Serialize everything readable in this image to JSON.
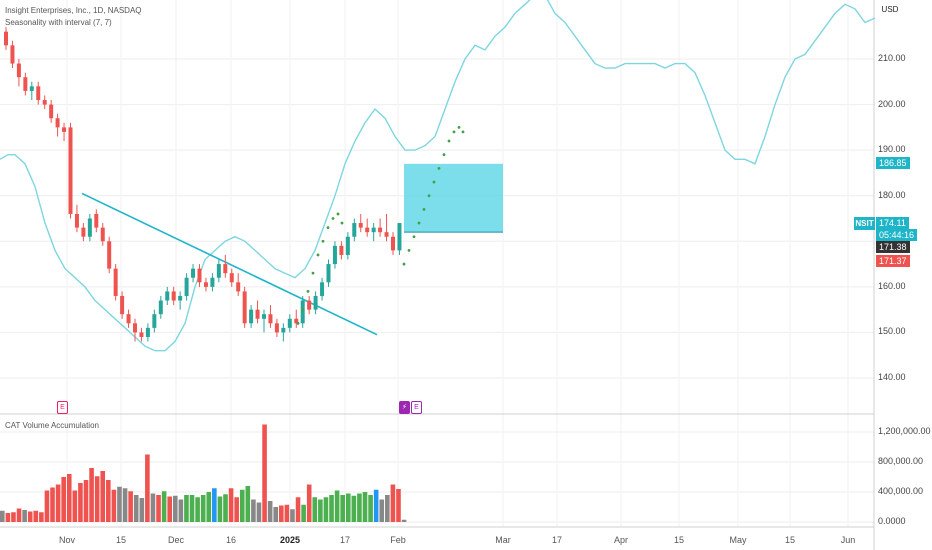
{
  "legend": {
    "symbol_line": "Insight Enterprises, Inc., 1D, NASDAQ",
    "indicator_line": "Seasonality with interval (7, 7)",
    "volume_label": "CAT Volume Accumulation"
  },
  "currency_button": "USD",
  "ticker": "NSIT",
  "price_axis_labels": [
    "210.00",
    "200.00",
    "190.00",
    "180.00",
    "160.00",
    "150.00",
    "140.00"
  ],
  "volume_axis_labels": [
    "1,200,000.00",
    "800,000.00",
    "400,000.00",
    "0.0000"
  ],
  "price_tags": {
    "target": "186.85",
    "last": "174.11",
    "countdown": "05:44:16",
    "close_a": "171.38",
    "close_b": "171.37"
  },
  "time_labels": [
    "Nov",
    "15",
    "Dec",
    "16",
    "2025",
    "17",
    "Feb",
    "Mar",
    "17",
    "Apr",
    "15",
    "May",
    "15",
    "Jun"
  ],
  "events": [
    "E",
    "⚡",
    "E"
  ],
  "colors": {
    "up": "#26a69a",
    "down": "#ef5350",
    "seasonality": "#7dd6e0",
    "trendline": "#1fb5c9",
    "target_box": "#4fd3e3",
    "forecast_dots": "#43a047",
    "vol_green": "#4caf50",
    "vol_red": "#ef5350",
    "vol_gray": "#888888",
    "vol_blue": "#2196f3"
  },
  "chart_data": {
    "type": "candlestick",
    "price_range": [
      132,
      218
    ],
    "volume_range": [
      0,
      1300000
    ],
    "candles": [
      [
        216,
        217,
        212,
        213
      ],
      [
        213,
        214,
        208,
        209
      ],
      [
        209,
        210,
        204,
        206
      ],
      [
        206,
        207,
        202,
        203
      ],
      [
        203,
        205,
        201,
        204
      ],
      [
        204,
        205,
        200,
        201
      ],
      [
        201,
        202,
        199,
        200
      ],
      [
        200,
        201,
        196,
        197
      ],
      [
        197,
        198,
        193,
        195
      ],
      [
        195,
        196,
        192,
        194
      ],
      [
        195,
        196,
        175,
        176
      ],
      [
        176,
        178,
        172,
        173
      ],
      [
        173,
        174,
        170,
        171
      ],
      [
        171,
        176,
        170,
        175
      ],
      [
        176,
        177,
        172,
        173
      ],
      [
        173,
        174,
        169,
        170
      ],
      [
        170,
        171,
        163,
        164
      ],
      [
        164,
        165,
        157,
        158
      ],
      [
        158,
        159,
        153,
        154
      ],
      [
        154,
        155,
        151,
        152
      ],
      [
        152,
        153,
        148,
        150
      ],
      [
        150,
        151,
        148,
        149
      ],
      [
        149,
        152,
        148,
        151
      ],
      [
        151,
        155,
        150,
        154
      ],
      [
        154,
        158,
        153,
        157
      ],
      [
        157,
        160,
        156,
        159
      ],
      [
        159,
        160,
        156,
        157
      ],
      [
        157,
        159,
        155,
        158
      ],
      [
        158,
        163,
        157,
        162
      ],
      [
        162,
        165,
        161,
        164
      ],
      [
        164,
        165,
        160,
        161
      ],
      [
        161,
        162,
        159,
        160
      ],
      [
        160,
        163,
        159,
        162
      ],
      [
        162,
        166,
        161,
        165
      ],
      [
        165,
        167,
        162,
        163
      ],
      [
        163,
        164,
        160,
        161
      ],
      [
        161,
        163,
        158,
        159
      ],
      [
        159,
        160,
        151,
        152
      ],
      [
        152,
        156,
        151,
        155
      ],
      [
        155,
        157,
        152,
        153
      ],
      [
        153,
        155,
        150,
        154
      ],
      [
        154,
        156,
        151,
        152
      ],
      [
        152,
        153,
        149,
        150
      ],
      [
        150,
        152,
        148,
        151
      ],
      [
        151,
        154,
        150,
        153
      ],
      [
        153,
        155,
        151,
        152
      ],
      [
        152,
        158,
        151,
        157
      ],
      [
        157,
        158,
        154,
        155
      ],
      [
        155,
        159,
        154,
        158
      ],
      [
        158,
        162,
        157,
        161
      ],
      [
        161,
        166,
        160,
        165
      ],
      [
        165,
        170,
        164,
        169
      ],
      [
        169,
        170,
        166,
        167
      ],
      [
        167,
        172,
        166,
        171
      ],
      [
        171,
        175,
        170,
        174
      ],
      [
        174,
        176,
        172,
        173
      ],
      [
        173,
        175,
        171,
        172
      ],
      [
        172,
        174,
        170,
        173
      ],
      [
        173,
        175,
        171,
        172
      ],
      [
        172,
        176,
        170,
        171
      ],
      [
        171,
        172,
        167,
        168
      ],
      [
        168,
        174,
        167,
        174
      ]
    ],
    "volume": [
      [
        150000,
        "gray"
      ],
      [
        120000,
        "red"
      ],
      [
        130000,
        "red"
      ],
      [
        180000,
        "red"
      ],
      [
        160000,
        "gray"
      ],
      [
        140000,
        "red"
      ],
      [
        150000,
        "red"
      ],
      [
        130000,
        "red"
      ],
      [
        420000,
        "red"
      ],
      [
        460000,
        "red"
      ],
      [
        500000,
        "red"
      ],
      [
        600000,
        "red"
      ],
      [
        640000,
        "red"
      ],
      [
        420000,
        "red"
      ],
      [
        520000,
        "red"
      ],
      [
        560000,
        "red"
      ],
      [
        720000,
        "red"
      ],
      [
        610000,
        "red"
      ],
      [
        680000,
        "red"
      ],
      [
        560000,
        "red"
      ],
      [
        430000,
        "red"
      ],
      [
        470000,
        "gray"
      ],
      [
        450000,
        "gray"
      ],
      [
        410000,
        "red"
      ],
      [
        360000,
        "gray"
      ],
      [
        320000,
        "gray"
      ],
      [
        900000,
        "red"
      ],
      [
        380000,
        "gray"
      ],
      [
        360000,
        "red"
      ],
      [
        410000,
        "green"
      ],
      [
        340000,
        "red"
      ],
      [
        350000,
        "gray"
      ],
      [
        300000,
        "gray"
      ],
      [
        360000,
        "green"
      ],
      [
        360000,
        "green"
      ],
      [
        330000,
        "green"
      ],
      [
        360000,
        "green"
      ],
      [
        400000,
        "green"
      ],
      [
        450000,
        "blue"
      ],
      [
        340000,
        "green"
      ],
      [
        370000,
        "green"
      ],
      [
        450000,
        "red"
      ],
      [
        330000,
        "red"
      ],
      [
        430000,
        "green"
      ],
      [
        480000,
        "green"
      ],
      [
        300000,
        "gray"
      ],
      [
        260000,
        "gray"
      ],
      [
        1300000,
        "red"
      ],
      [
        280000,
        "gray"
      ],
      [
        200000,
        "gray"
      ],
      [
        220000,
        "red"
      ],
      [
        230000,
        "red"
      ],
      [
        170000,
        "gray"
      ],
      [
        330000,
        "red"
      ],
      [
        230000,
        "green"
      ],
      [
        500000,
        "red"
      ],
      [
        330000,
        "green"
      ],
      [
        300000,
        "green"
      ],
      [
        330000,
        "green"
      ],
      [
        360000,
        "green"
      ],
      [
        420000,
        "green"
      ],
      [
        360000,
        "green"
      ],
      [
        380000,
        "green"
      ],
      [
        350000,
        "green"
      ],
      [
        380000,
        "green"
      ],
      [
        400000,
        "green"
      ],
      [
        360000,
        "green"
      ],
      [
        430000,
        "blue"
      ],
      [
        300000,
        "gray"
      ],
      [
        360000,
        "gray"
      ],
      [
        500000,
        "red"
      ],
      [
        440000,
        "red"
      ],
      [
        30000,
        "gray"
      ]
    ],
    "seasonality": [
      [
        0,
        188
      ],
      [
        8,
        189
      ],
      [
        15,
        189
      ],
      [
        25,
        187
      ],
      [
        35,
        182
      ],
      [
        45,
        174
      ],
      [
        55,
        168
      ],
      [
        65,
        164
      ],
      [
        75,
        162
      ],
      [
        85,
        160
      ],
      [
        95,
        157
      ],
      [
        105,
        155
      ],
      [
        115,
        153
      ],
      [
        125,
        151
      ],
      [
        135,
        149
      ],
      [
        145,
        147
      ],
      [
        155,
        146
      ],
      [
        165,
        146
      ],
      [
        175,
        148
      ],
      [
        185,
        152
      ],
      [
        195,
        160
      ],
      [
        205,
        166
      ],
      [
        215,
        168
      ],
      [
        225,
        170
      ],
      [
        235,
        171
      ],
      [
        245,
        170
      ],
      [
        255,
        168
      ],
      [
        265,
        166
      ],
      [
        275,
        164
      ],
      [
        285,
        163
      ],
      [
        295,
        162
      ],
      [
        305,
        164
      ],
      [
        315,
        168
      ],
      [
        325,
        174
      ],
      [
        335,
        180
      ],
      [
        345,
        187
      ],
      [
        355,
        192
      ],
      [
        365,
        196
      ],
      [
        375,
        199
      ],
      [
        385,
        197
      ],
      [
        395,
        193
      ],
      [
        405,
        190
      ],
      [
        415,
        190
      ],
      [
        425,
        191
      ],
      [
        435,
        193
      ],
      [
        445,
        199
      ],
      [
        455,
        205
      ],
      [
        465,
        210
      ],
      [
        475,
        213
      ],
      [
        485,
        212
      ],
      [
        495,
        215
      ],
      [
        505,
        217
      ],
      [
        515,
        220
      ],
      [
        525,
        222
      ],
      [
        535,
        224
      ],
      [
        545,
        224
      ],
      [
        555,
        220
      ],
      [
        565,
        218
      ],
      [
        575,
        215
      ],
      [
        585,
        212
      ],
      [
        595,
        209
      ],
      [
        605,
        208
      ],
      [
        615,
        208
      ],
      [
        625,
        209
      ],
      [
        635,
        209
      ],
      [
        645,
        209
      ],
      [
        655,
        209
      ],
      [
        665,
        208
      ],
      [
        675,
        209
      ],
      [
        685,
        209
      ],
      [
        695,
        207
      ],
      [
        705,
        202
      ],
      [
        715,
        196
      ],
      [
        725,
        190
      ],
      [
        735,
        188
      ],
      [
        745,
        188
      ],
      [
        755,
        187
      ],
      [
        765,
        193
      ],
      [
        775,
        200
      ],
      [
        785,
        206
      ],
      [
        795,
        210
      ],
      [
        805,
        211
      ],
      [
        815,
        214
      ],
      [
        825,
        217
      ],
      [
        835,
        220
      ],
      [
        845,
        222
      ],
      [
        855,
        221
      ],
      [
        865,
        218
      ],
      [
        875,
        219
      ]
    ],
    "trendline": [
      [
        82,
        180.5
      ],
      [
        377,
        149.5
      ]
    ],
    "target_box": {
      "price_top": 187,
      "price_bottom": 172
    },
    "forecast_dots": [
      [
        298,
        152
      ],
      [
        303,
        155
      ],
      [
        308,
        159
      ],
      [
        313,
        163
      ],
      [
        318,
        167
      ],
      [
        323,
        170
      ],
      [
        328,
        173
      ],
      [
        333,
        175
      ],
      [
        338,
        176
      ],
      [
        342,
        174
      ],
      [
        404,
        165
      ],
      [
        409,
        168
      ],
      [
        414,
        171
      ],
      [
        419,
        174
      ],
      [
        424,
        177
      ],
      [
        429,
        180
      ],
      [
        434,
        183
      ],
      [
        439,
        186
      ],
      [
        444,
        189
      ],
      [
        449,
        192
      ],
      [
        454,
        194
      ],
      [
        459,
        195
      ],
      [
        463,
        194
      ]
    ]
  }
}
